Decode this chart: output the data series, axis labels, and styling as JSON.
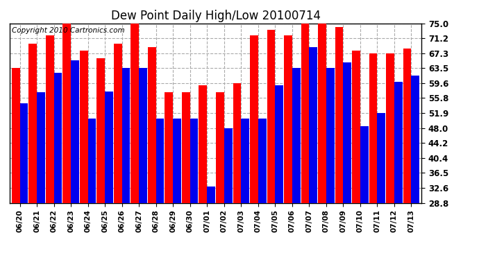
{
  "title": "Dew Point Daily High/Low 20100714",
  "copyright": "Copyright 2010 Cartronics.com",
  "dates": [
    "06/20",
    "06/21",
    "06/22",
    "06/23",
    "06/24",
    "06/25",
    "06/26",
    "06/27",
    "06/28",
    "06/29",
    "06/30",
    "07/01",
    "07/02",
    "07/03",
    "07/04",
    "07/05",
    "07/06",
    "07/07",
    "07/08",
    "07/09",
    "07/10",
    "07/11",
    "07/12",
    "07/13"
  ],
  "highs": [
    63.5,
    69.8,
    72.0,
    75.0,
    68.0,
    66.0,
    69.8,
    75.0,
    68.8,
    57.2,
    57.2,
    59.0,
    57.2,
    59.6,
    72.0,
    73.4,
    72.0,
    75.0,
    75.0,
    74.0,
    68.0,
    67.3,
    67.3,
    68.5
  ],
  "lows": [
    54.5,
    57.2,
    62.2,
    65.5,
    50.5,
    57.5,
    63.5,
    63.5,
    50.5,
    50.5,
    50.5,
    33.0,
    48.0,
    50.5,
    50.5,
    59.0,
    63.5,
    68.8,
    63.5,
    65.0,
    48.5,
    52.0,
    60.0,
    61.5
  ],
  "ylim_min": 28.8,
  "ylim_max": 75.0,
  "yticks": [
    28.8,
    32.6,
    36.5,
    40.4,
    44.2,
    48.0,
    51.9,
    55.8,
    59.6,
    63.5,
    67.3,
    71.2,
    75.0
  ],
  "bar_color_high": "#ff0000",
  "bar_color_low": "#0000ee",
  "bg_color": "#ffffff",
  "grid_color": "#aaaaaa",
  "title_fontsize": 12,
  "copyright_fontsize": 7.5,
  "border_color": "#000000"
}
